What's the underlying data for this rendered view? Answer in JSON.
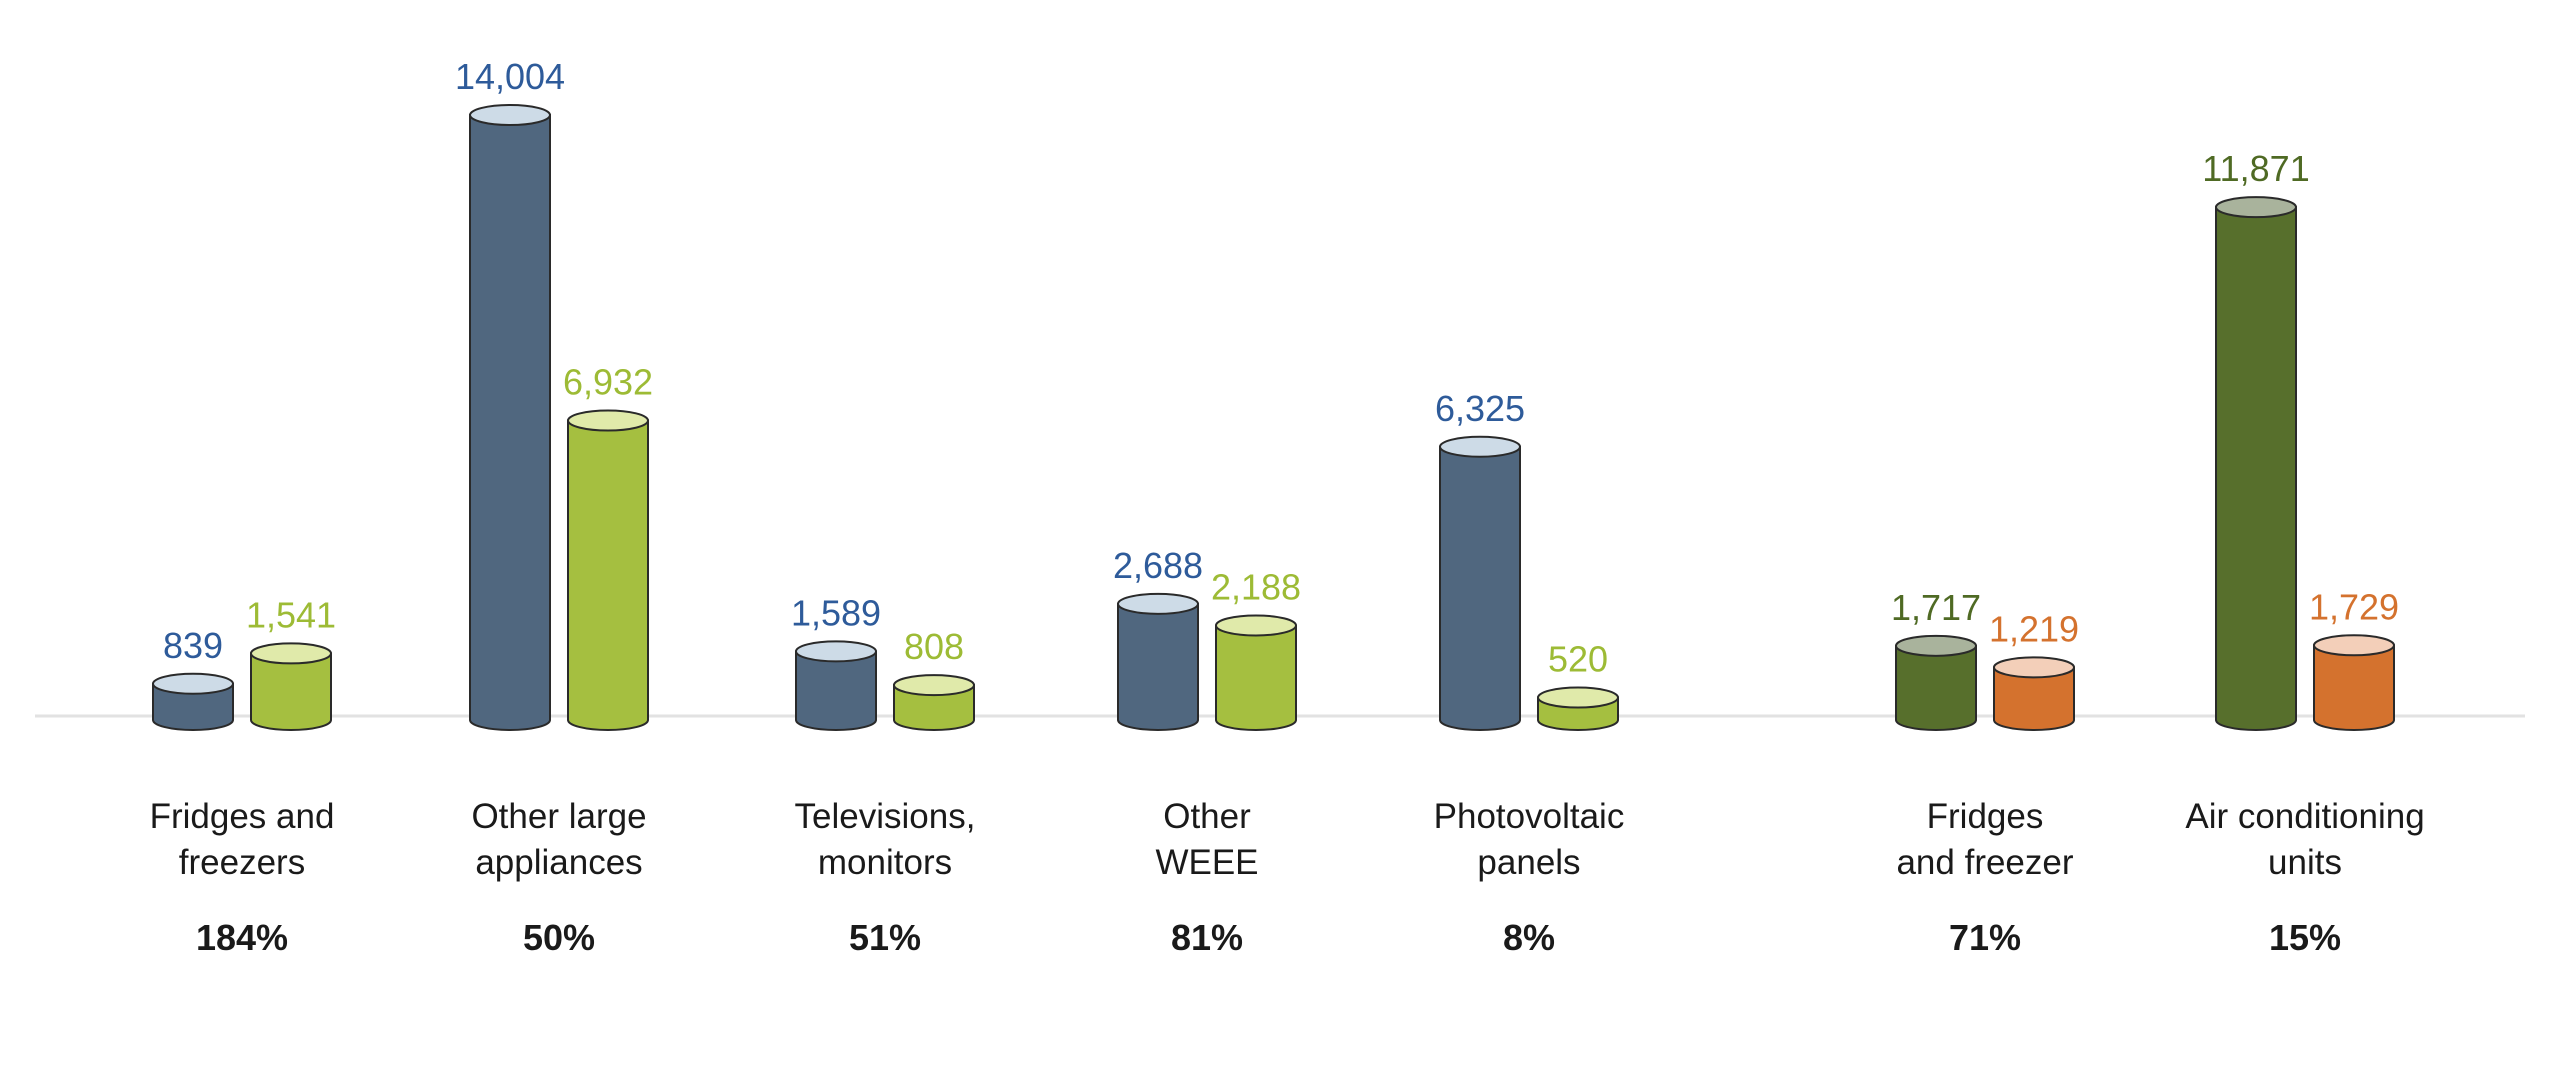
{
  "chart_data": {
    "type": "bar",
    "style": "cylinder",
    "value_unit": "",
    "grid": false,
    "legend": "none",
    "groups": [
      {
        "category": [
          "Fridges and",
          "freezers"
        ],
        "percent": "184%",
        "bars": [
          {
            "value": 839,
            "label": "839",
            "color": "#50677f",
            "top_color": "#cddbe7",
            "label_color": "#2e5b9a"
          },
          {
            "value": 1541,
            "label": "1,541",
            "color": "#a5bf40",
            "top_color": "#e0eaaa",
            "label_color": "#9dbb35"
          }
        ]
      },
      {
        "category": [
          "Other large",
          "appliances"
        ],
        "percent": "50%",
        "bars": [
          {
            "value": 14004,
            "label": "14,004",
            "color": "#50677f",
            "top_color": "#cddbe7",
            "label_color": "#2e5b9a"
          },
          {
            "value": 6932,
            "label": "6,932",
            "color": "#a5bf40",
            "top_color": "#e0eaaa",
            "label_color": "#9dbb35"
          }
        ]
      },
      {
        "category": [
          "Televisions,",
          "monitors"
        ],
        "percent": "51%",
        "bars": [
          {
            "value": 1589,
            "label": "1,589",
            "color": "#50677f",
            "top_color": "#cddbe7",
            "label_color": "#2e5b9a"
          },
          {
            "value": 808,
            "label": "808",
            "color": "#a5bf40",
            "top_color": "#e0eaaa",
            "label_color": "#9dbb35"
          }
        ]
      },
      {
        "category": [
          "Other",
          "WEEE"
        ],
        "percent": "81%",
        "bars": [
          {
            "value": 2688,
            "label": "2,688",
            "color": "#50677f",
            "top_color": "#cddbe7",
            "label_color": "#2e5b9a"
          },
          {
            "value": 2188,
            "label": "2,188",
            "color": "#a5bf40",
            "top_color": "#e0eaaa",
            "label_color": "#9dbb35"
          }
        ]
      },
      {
        "category": [
          "Photovoltaic",
          "panels"
        ],
        "percent": "8%",
        "bars": [
          {
            "value": 6325,
            "label": "6,325",
            "color": "#50677f",
            "top_color": "#cddbe7",
            "label_color": "#2e5b9a"
          },
          {
            "value": 520,
            "label": "520",
            "color": "#a5bf40",
            "top_color": "#e0eaaa",
            "label_color": "#9dbb35"
          }
        ]
      },
      {
        "category": [
          "Fridges",
          "and freezer"
        ],
        "percent": "71%",
        "bars": [
          {
            "value": 1717,
            "label": "1,717",
            "color": "#576f2c",
            "top_color": "#a9b39c",
            "label_color": "#4f6a24"
          },
          {
            "value": 1219,
            "label": "1,219",
            "color": "#d4722e",
            "top_color": "#f3cfb9",
            "label_color": "#d4722e"
          }
        ]
      },
      {
        "category": [
          "Air conditioning",
          "units"
        ],
        "percent": "15%",
        "bars": [
          {
            "value": 11871,
            "label": "11,871",
            "color": "#576f2c",
            "top_color": "#a9b39c",
            "label_color": "#4f6a24"
          },
          {
            "value": 1729,
            "label": "1,729",
            "color": "#d4722e",
            "top_color": "#f3cfb9",
            "label_color": "#d4722e"
          }
        ]
      }
    ]
  }
}
